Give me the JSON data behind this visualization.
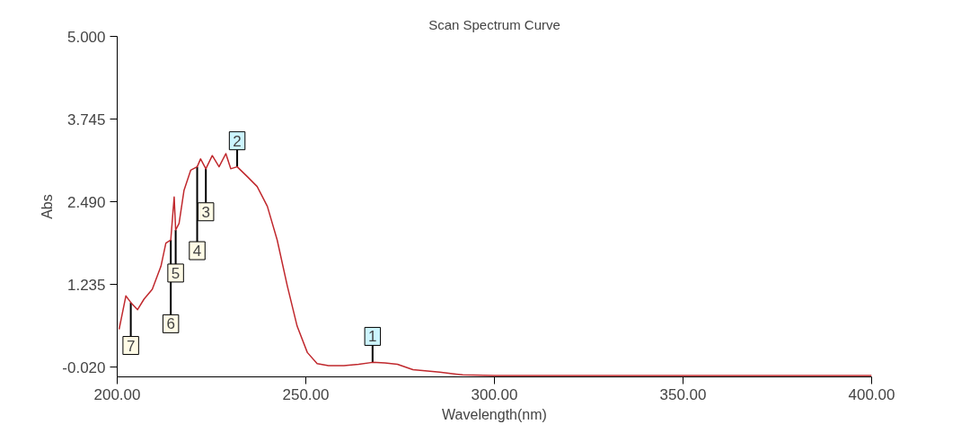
{
  "chart_data": {
    "type": "line",
    "title": "Scan Spectrum Curve",
    "xlabel": "Wavelength(nm)",
    "ylabel": "Abs",
    "x": [
      200.5,
      202.3,
      203.6,
      205.4,
      207.1,
      209.3,
      211.6,
      212.9,
      214.2,
      215.1,
      215.5,
      216.4,
      217.7,
      219.5,
      221.2,
      222.1,
      223.5,
      225.2,
      227.0,
      228.8,
      230.1,
      231.8,
      234.5,
      237.1,
      239.8,
      242.4,
      245.1,
      247.7,
      250.4,
      253.0,
      256.0,
      260.1,
      264.0,
      267.7,
      271.0,
      274.3,
      278.4,
      285.5,
      291.6,
      300.0,
      320.0,
      350.0,
      380.0,
      400.0
    ],
    "series": [
      {
        "color": "#c0282d",
        "values": [
          0.55,
          1.06,
          0.96,
          0.85,
          1.01,
          1.16,
          1.51,
          1.86,
          1.91,
          2.56,
          2.06,
          2.16,
          2.66,
          2.97,
          3.02,
          3.14,
          2.99,
          3.19,
          3.02,
          3.22,
          2.99,
          3.02,
          2.87,
          2.72,
          2.42,
          1.91,
          1.21,
          0.6,
          0.2,
          0.03,
          0.0,
          0.0,
          0.02,
          0.05,
          0.04,
          0.02,
          -0.06,
          -0.1,
          -0.14,
          -0.15,
          -0.15,
          -0.15,
          -0.15,
          -0.15
        ]
      }
    ],
    "xlim": [
      200,
      400
    ],
    "ylim": [
      -0.17,
      5.0
    ],
    "xticks": [
      {
        "value": 200,
        "label": "200.00"
      },
      {
        "value": 250,
        "label": "250.00"
      },
      {
        "value": 300,
        "label": "300.00"
      },
      {
        "value": 350,
        "label": "350.00"
      },
      {
        "value": 400,
        "label": "400.00"
      }
    ],
    "yticks": [
      {
        "value": -0.02,
        "label": "-0.020"
      },
      {
        "value": 1.235,
        "label": "1.235"
      },
      {
        "value": 2.49,
        "label": "2.490"
      },
      {
        "value": 3.745,
        "label": "3.745"
      },
      {
        "value": 5.0,
        "label": "5.000"
      }
    ],
    "grid": false,
    "marker": "none",
    "line_style": "solid",
    "annotations": [
      {
        "text": "1",
        "x": 267.7,
        "y": 0.05
      },
      {
        "text": "2",
        "x": 231.8,
        "y": 3.02
      },
      {
        "text": "3",
        "x": 223.5,
        "y": 2.99
      },
      {
        "text": "4",
        "x": 221.2,
        "y": 3.02
      },
      {
        "text": "5",
        "x": 215.5,
        "y": 2.06
      },
      {
        "text": "6",
        "x": 214.2,
        "y": 1.91
      },
      {
        "text": "7",
        "x": 203.6,
        "y": 0.96
      }
    ]
  }
}
